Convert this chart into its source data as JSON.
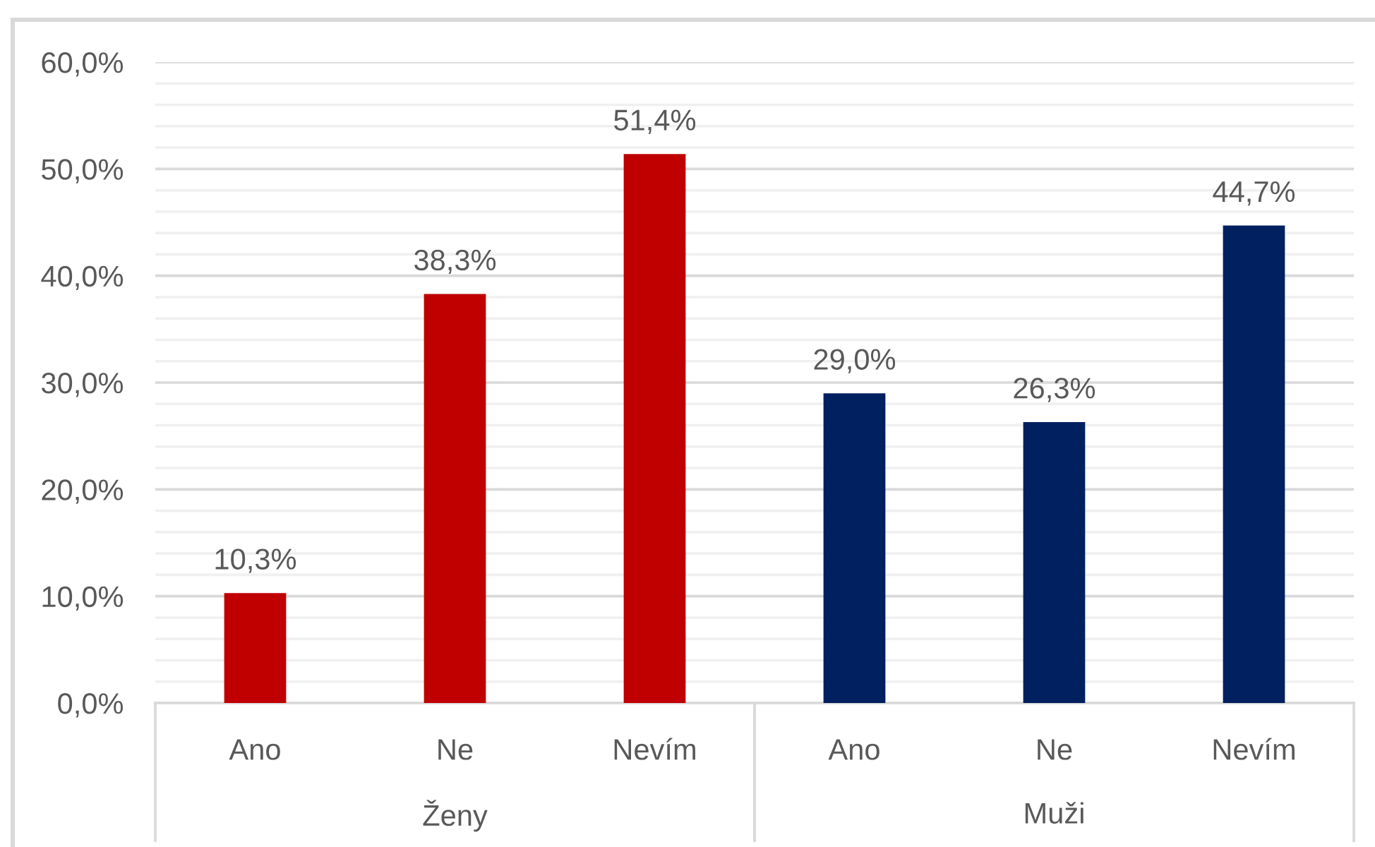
{
  "chart_data": {
    "type": "bar",
    "categories": [
      "Ano",
      "Ne",
      "Nevím",
      "Ano",
      "Ne",
      "Nevím"
    ],
    "series": [
      {
        "color": "#c00000",
        "values": [
          10.3,
          38.3,
          51.4,
          null,
          null,
          null
        ],
        "value_labels": [
          "10,3%",
          "38,3%",
          "51,4%",
          null,
          null,
          null
        ]
      },
      {
        "color": "#002060",
        "values": [
          null,
          null,
          null,
          29.0,
          26.3,
          44.7
        ],
        "value_labels": [
          null,
          null,
          null,
          "29,0%",
          "26,3%",
          "44,7%"
        ]
      }
    ],
    "annotations": [
      "Ženy",
      "Muži"
    ],
    "ylim": [
      0,
      60
    ],
    "yticks": [
      {
        "value": 0,
        "label": "0,0%"
      },
      {
        "value": 2,
        "label": null
      },
      {
        "value": 4,
        "label": null
      },
      {
        "value": 6,
        "label": null
      },
      {
        "value": 8,
        "label": null
      },
      {
        "value": 10,
        "label": "10,0%"
      },
      {
        "value": 12,
        "label": null
      },
      {
        "value": 14,
        "label": null
      },
      {
        "value": 16,
        "label": null
      },
      {
        "value": 18,
        "label": null
      },
      {
        "value": 20,
        "label": "20,0%"
      },
      {
        "value": 22,
        "label": null
      },
      {
        "value": 24,
        "label": null
      },
      {
        "value": 26,
        "label": null
      },
      {
        "value": 28,
        "label": null
      },
      {
        "value": 30,
        "label": "30,0%"
      },
      {
        "value": 32,
        "label": null
      },
      {
        "value": 34,
        "label": null
      },
      {
        "value": 36,
        "label": null
      },
      {
        "value": 38,
        "label": null
      },
      {
        "value": 40,
        "label": "40,0%"
      },
      {
        "value": 42,
        "label": null
      },
      {
        "value": 44,
        "label": null
      },
      {
        "value": 46,
        "label": null
      },
      {
        "value": 48,
        "label": null
      },
      {
        "value": 50,
        "label": "50,0%"
      },
      {
        "value": 52,
        "label": null
      },
      {
        "value": 54,
        "label": null
      },
      {
        "value": 56,
        "label": null
      },
      {
        "value": 58,
        "label": null
      },
      {
        "value": 60,
        "label": "60,0%"
      }
    ],
    "grid": "y",
    "legend": false
  }
}
